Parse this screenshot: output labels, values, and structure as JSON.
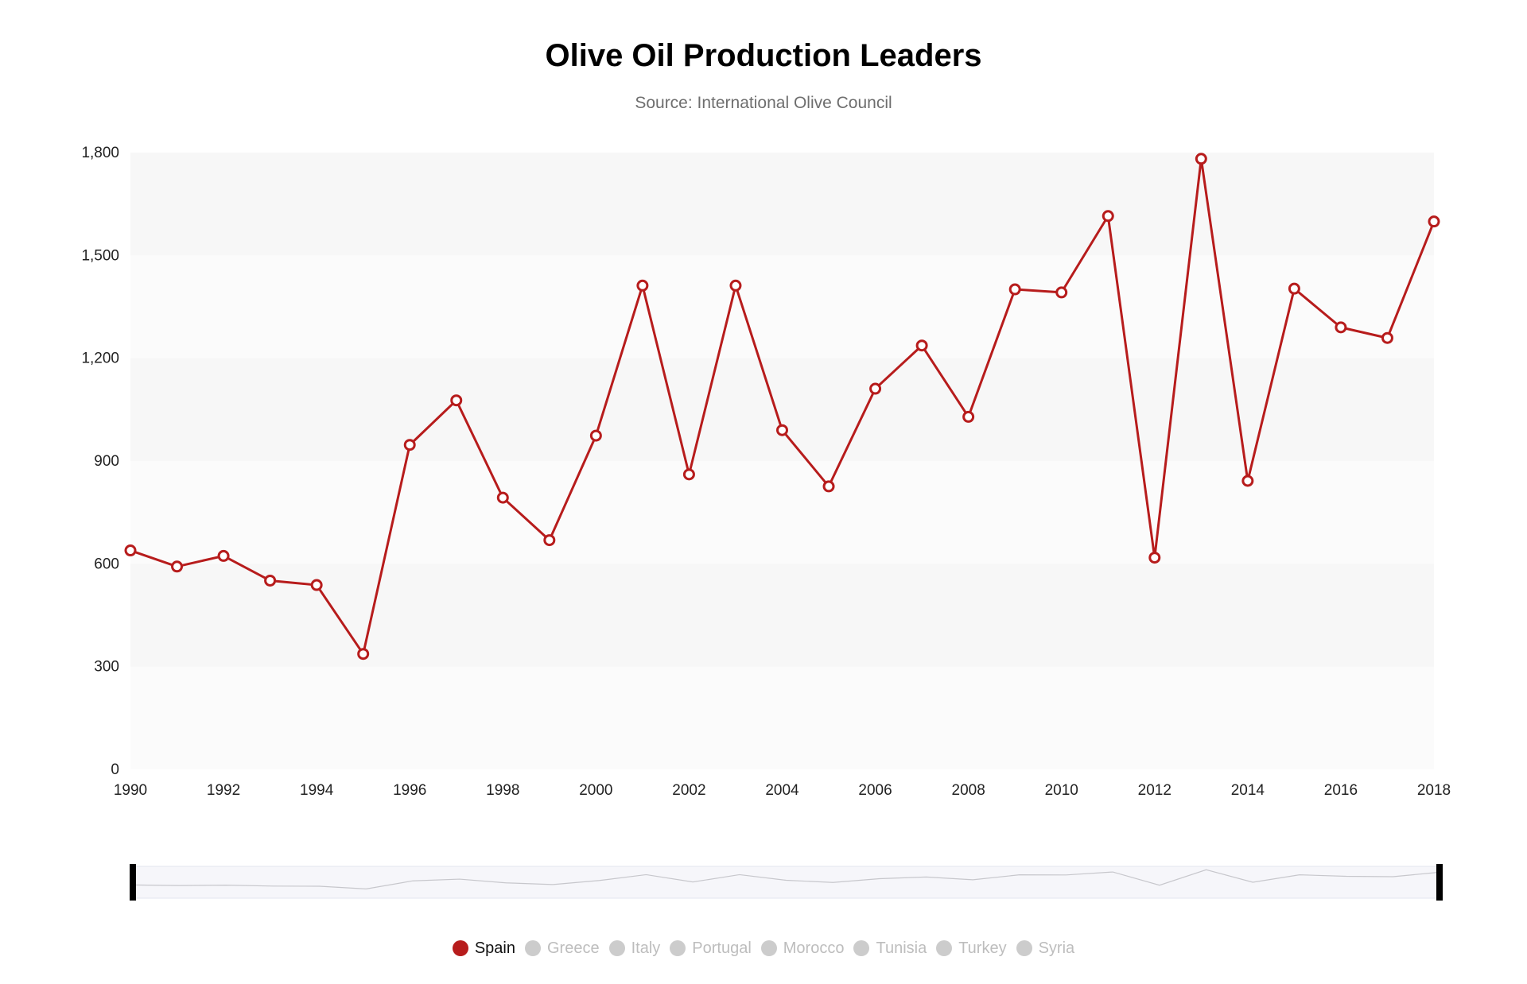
{
  "title": "Olive Oil Production Leaders",
  "subtitle": "Source: International Olive Council",
  "colors": {
    "active": "#b71c1c",
    "inactive": "#cccccc",
    "band_a": "#f7f7f7",
    "band_b": "#fbfbfb"
  },
  "legend": [
    {
      "name": "Spain",
      "active": true
    },
    {
      "name": "Greece",
      "active": false
    },
    {
      "name": "Italy",
      "active": false
    },
    {
      "name": "Portugal",
      "active": false
    },
    {
      "name": "Morocco",
      "active": false
    },
    {
      "name": "Tunisia",
      "active": false
    },
    {
      "name": "Turkey",
      "active": false
    },
    {
      "name": "Syria",
      "active": false
    }
  ],
  "chart_data": {
    "type": "line",
    "title": "Olive Oil Production Leaders",
    "subtitle": "Source: International Olive Council",
    "xlabel": "",
    "ylabel": "",
    "ylim": [
      0,
      1800
    ],
    "yticks": [
      "0",
      "300",
      "600",
      "900",
      "1,200",
      "1,500",
      "1,800"
    ],
    "yticks_values": [
      0,
      300,
      600,
      900,
      1200,
      1500,
      1800
    ],
    "xticks": [
      "1990",
      "1992",
      "1994",
      "1996",
      "1998",
      "2000",
      "2002",
      "2004",
      "2006",
      "2008",
      "2010",
      "2012",
      "2014",
      "2016",
      "2018"
    ],
    "x": [
      1990,
      1991,
      1992,
      1993,
      1994,
      1995,
      1996,
      1997,
      1998,
      1999,
      2000,
      2001,
      2002,
      2003,
      2004,
      2005,
      2006,
      2007,
      2008,
      2009,
      2010,
      2011,
      2012,
      2013,
      2014,
      2015,
      2016,
      2017,
      2018
    ],
    "series": [
      {
        "name": "Spain",
        "values": [
          639,
          592,
          623,
          551,
          538,
          337,
          947,
          1077,
          793,
          669,
          974,
          1412,
          861,
          1412,
          990,
          826,
          1111,
          1237,
          1029,
          1401,
          1392,
          1615,
          618,
          1782,
          842,
          1403,
          1290,
          1259,
          1599
        ]
      }
    ],
    "grid": "alternating bands",
    "legend_position": "bottom"
  }
}
